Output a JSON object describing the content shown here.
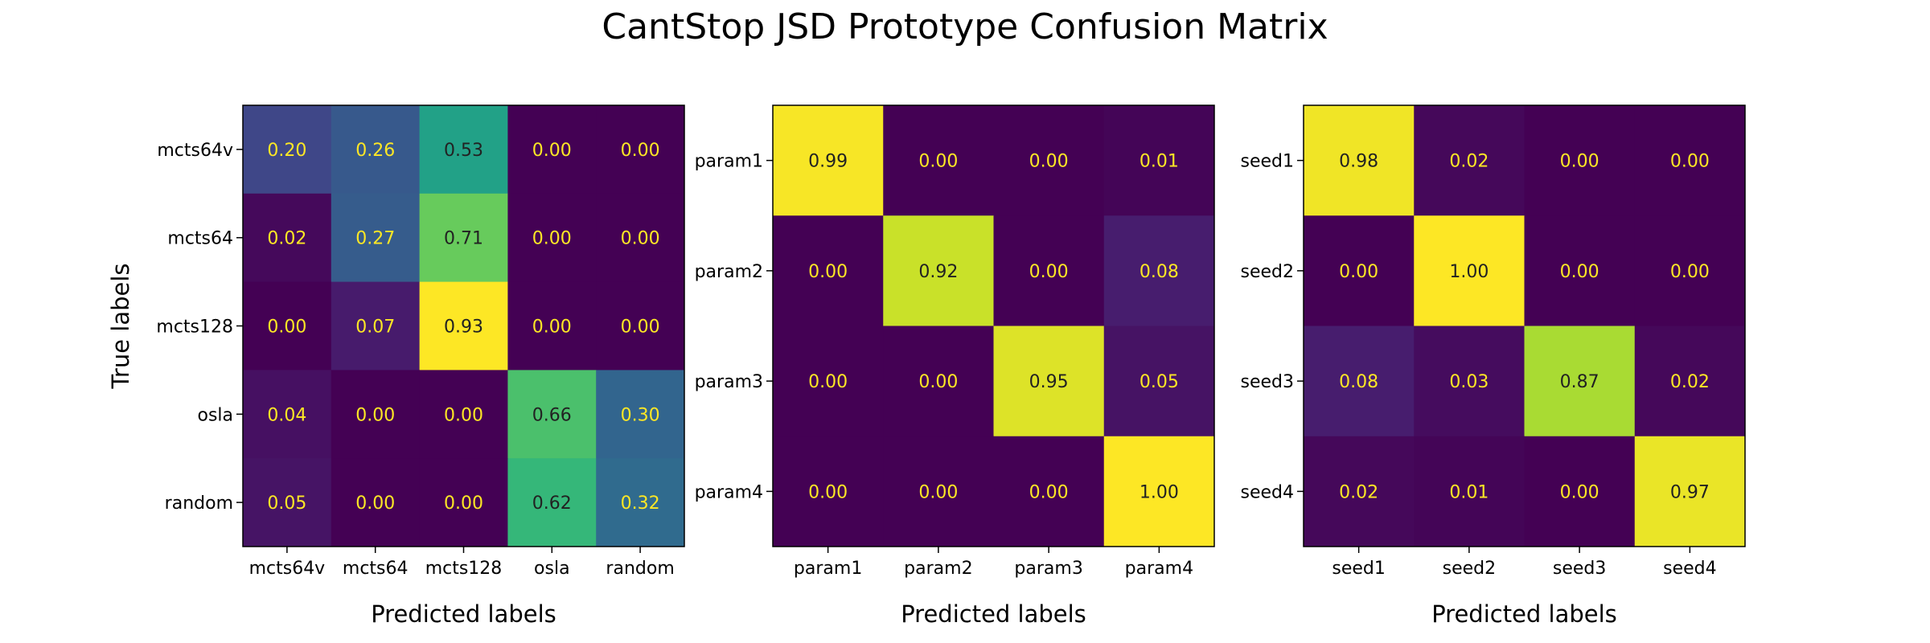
{
  "title": "CantStop JSD Prototype Confusion Matrix",
  "colormap": [
    "#440154",
    "#482878",
    "#3e4989",
    "#31688e",
    "#26828e",
    "#1f9e89",
    "#35b779",
    "#6ece58",
    "#b5de2b",
    "#fde725"
  ],
  "chart_data": [
    {
      "type": "heatmap",
      "xlabel": "Predicted labels",
      "ylabel": "True labels",
      "x_categories": [
        "mcts64v",
        "mcts64",
        "mcts128",
        "osla",
        "random"
      ],
      "y_categories": [
        "mcts64v",
        "mcts64",
        "mcts128",
        "osla",
        "random"
      ],
      "values": [
        [
          0.2,
          0.26,
          0.53,
          0.0,
          0.0
        ],
        [
          0.02,
          0.27,
          0.71,
          0.0,
          0.0
        ],
        [
          0.0,
          0.07,
          0.93,
          0.0,
          0.0
        ],
        [
          0.04,
          0.0,
          0.0,
          0.66,
          0.3
        ],
        [
          0.05,
          0.0,
          0.0,
          0.62,
          0.32
        ]
      ]
    },
    {
      "type": "heatmap",
      "xlabel": "Predicted labels",
      "ylabel": "",
      "x_categories": [
        "param1",
        "param2",
        "param3",
        "param4"
      ],
      "y_categories": [
        "param1",
        "param2",
        "param3",
        "param4"
      ],
      "values": [
        [
          0.99,
          0.0,
          0.0,
          0.01
        ],
        [
          0.0,
          0.92,
          0.0,
          0.08
        ],
        [
          0.0,
          0.0,
          0.95,
          0.05
        ],
        [
          0.0,
          0.0,
          0.0,
          1.0
        ]
      ]
    },
    {
      "type": "heatmap",
      "xlabel": "Predicted labels",
      "ylabel": "",
      "x_categories": [
        "seed1",
        "seed2",
        "seed3",
        "seed4"
      ],
      "y_categories": [
        "seed1",
        "seed2",
        "seed3",
        "seed4"
      ],
      "values": [
        [
          0.98,
          0.02,
          0.0,
          0.0
        ],
        [
          0.0,
          1.0,
          0.0,
          0.0
        ],
        [
          0.08,
          0.03,
          0.87,
          0.02
        ],
        [
          0.02,
          0.01,
          0.0,
          0.97
        ]
      ]
    }
  ]
}
